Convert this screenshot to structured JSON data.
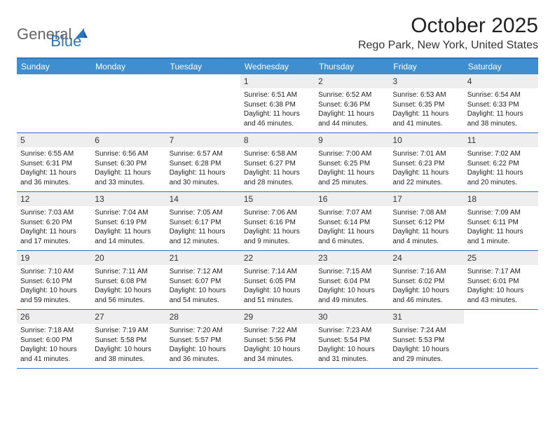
{
  "logo": {
    "textA": "General",
    "textB": "Blue"
  },
  "title": "October 2025",
  "location": "Rego Park, New York, United States",
  "day_headers": [
    "Sunday",
    "Monday",
    "Tuesday",
    "Wednesday",
    "Thursday",
    "Friday",
    "Saturday"
  ],
  "colors": {
    "header_bg": "#3f8ed0",
    "header_fg": "#ffffff",
    "border": "#2b74c0",
    "daynum_bg": "#eeeeee",
    "logo_accent": "#2b74c0",
    "logo_gray": "#666666"
  },
  "typography": {
    "title_fontsize": 30,
    "location_fontsize": 16,
    "header_fontsize": 12,
    "daynum_fontsize": 12,
    "info_fontsize": 10
  },
  "layout": {
    "columns": 7,
    "rows": 5,
    "leading_blank": 3,
    "trailing_blank": 1
  },
  "days": [
    {
      "n": "1",
      "sr": "Sunrise: 6:51 AM",
      "ss": "Sunset: 6:38 PM",
      "dl": "Daylight: 11 hours and 46 minutes."
    },
    {
      "n": "2",
      "sr": "Sunrise: 6:52 AM",
      "ss": "Sunset: 6:36 PM",
      "dl": "Daylight: 11 hours and 44 minutes."
    },
    {
      "n": "3",
      "sr": "Sunrise: 6:53 AM",
      "ss": "Sunset: 6:35 PM",
      "dl": "Daylight: 11 hours and 41 minutes."
    },
    {
      "n": "4",
      "sr": "Sunrise: 6:54 AM",
      "ss": "Sunset: 6:33 PM",
      "dl": "Daylight: 11 hours and 38 minutes."
    },
    {
      "n": "5",
      "sr": "Sunrise: 6:55 AM",
      "ss": "Sunset: 6:31 PM",
      "dl": "Daylight: 11 hours and 36 minutes."
    },
    {
      "n": "6",
      "sr": "Sunrise: 6:56 AM",
      "ss": "Sunset: 6:30 PM",
      "dl": "Daylight: 11 hours and 33 minutes."
    },
    {
      "n": "7",
      "sr": "Sunrise: 6:57 AM",
      "ss": "Sunset: 6:28 PM",
      "dl": "Daylight: 11 hours and 30 minutes."
    },
    {
      "n": "8",
      "sr": "Sunrise: 6:58 AM",
      "ss": "Sunset: 6:27 PM",
      "dl": "Daylight: 11 hours and 28 minutes."
    },
    {
      "n": "9",
      "sr": "Sunrise: 7:00 AM",
      "ss": "Sunset: 6:25 PM",
      "dl": "Daylight: 11 hours and 25 minutes."
    },
    {
      "n": "10",
      "sr": "Sunrise: 7:01 AM",
      "ss": "Sunset: 6:23 PM",
      "dl": "Daylight: 11 hours and 22 minutes."
    },
    {
      "n": "11",
      "sr": "Sunrise: 7:02 AM",
      "ss": "Sunset: 6:22 PM",
      "dl": "Daylight: 11 hours and 20 minutes."
    },
    {
      "n": "12",
      "sr": "Sunrise: 7:03 AM",
      "ss": "Sunset: 6:20 PM",
      "dl": "Daylight: 11 hours and 17 minutes."
    },
    {
      "n": "13",
      "sr": "Sunrise: 7:04 AM",
      "ss": "Sunset: 6:19 PM",
      "dl": "Daylight: 11 hours and 14 minutes."
    },
    {
      "n": "14",
      "sr": "Sunrise: 7:05 AM",
      "ss": "Sunset: 6:17 PM",
      "dl": "Daylight: 11 hours and 12 minutes."
    },
    {
      "n": "15",
      "sr": "Sunrise: 7:06 AM",
      "ss": "Sunset: 6:16 PM",
      "dl": "Daylight: 11 hours and 9 minutes."
    },
    {
      "n": "16",
      "sr": "Sunrise: 7:07 AM",
      "ss": "Sunset: 6:14 PM",
      "dl": "Daylight: 11 hours and 6 minutes."
    },
    {
      "n": "17",
      "sr": "Sunrise: 7:08 AM",
      "ss": "Sunset: 6:12 PM",
      "dl": "Daylight: 11 hours and 4 minutes."
    },
    {
      "n": "18",
      "sr": "Sunrise: 7:09 AM",
      "ss": "Sunset: 6:11 PM",
      "dl": "Daylight: 11 hours and 1 minute."
    },
    {
      "n": "19",
      "sr": "Sunrise: 7:10 AM",
      "ss": "Sunset: 6:10 PM",
      "dl": "Daylight: 10 hours and 59 minutes."
    },
    {
      "n": "20",
      "sr": "Sunrise: 7:11 AM",
      "ss": "Sunset: 6:08 PM",
      "dl": "Daylight: 10 hours and 56 minutes."
    },
    {
      "n": "21",
      "sr": "Sunrise: 7:12 AM",
      "ss": "Sunset: 6:07 PM",
      "dl": "Daylight: 10 hours and 54 minutes."
    },
    {
      "n": "22",
      "sr": "Sunrise: 7:14 AM",
      "ss": "Sunset: 6:05 PM",
      "dl": "Daylight: 10 hours and 51 minutes."
    },
    {
      "n": "23",
      "sr": "Sunrise: 7:15 AM",
      "ss": "Sunset: 6:04 PM",
      "dl": "Daylight: 10 hours and 49 minutes."
    },
    {
      "n": "24",
      "sr": "Sunrise: 7:16 AM",
      "ss": "Sunset: 6:02 PM",
      "dl": "Daylight: 10 hours and 46 minutes."
    },
    {
      "n": "25",
      "sr": "Sunrise: 7:17 AM",
      "ss": "Sunset: 6:01 PM",
      "dl": "Daylight: 10 hours and 43 minutes."
    },
    {
      "n": "26",
      "sr": "Sunrise: 7:18 AM",
      "ss": "Sunset: 6:00 PM",
      "dl": "Daylight: 10 hours and 41 minutes."
    },
    {
      "n": "27",
      "sr": "Sunrise: 7:19 AM",
      "ss": "Sunset: 5:58 PM",
      "dl": "Daylight: 10 hours and 38 minutes."
    },
    {
      "n": "28",
      "sr": "Sunrise: 7:20 AM",
      "ss": "Sunset: 5:57 PM",
      "dl": "Daylight: 10 hours and 36 minutes."
    },
    {
      "n": "29",
      "sr": "Sunrise: 7:22 AM",
      "ss": "Sunset: 5:56 PM",
      "dl": "Daylight: 10 hours and 34 minutes."
    },
    {
      "n": "30",
      "sr": "Sunrise: 7:23 AM",
      "ss": "Sunset: 5:54 PM",
      "dl": "Daylight: 10 hours and 31 minutes."
    },
    {
      "n": "31",
      "sr": "Sunrise: 7:24 AM",
      "ss": "Sunset: 5:53 PM",
      "dl": "Daylight: 10 hours and 29 minutes."
    }
  ]
}
